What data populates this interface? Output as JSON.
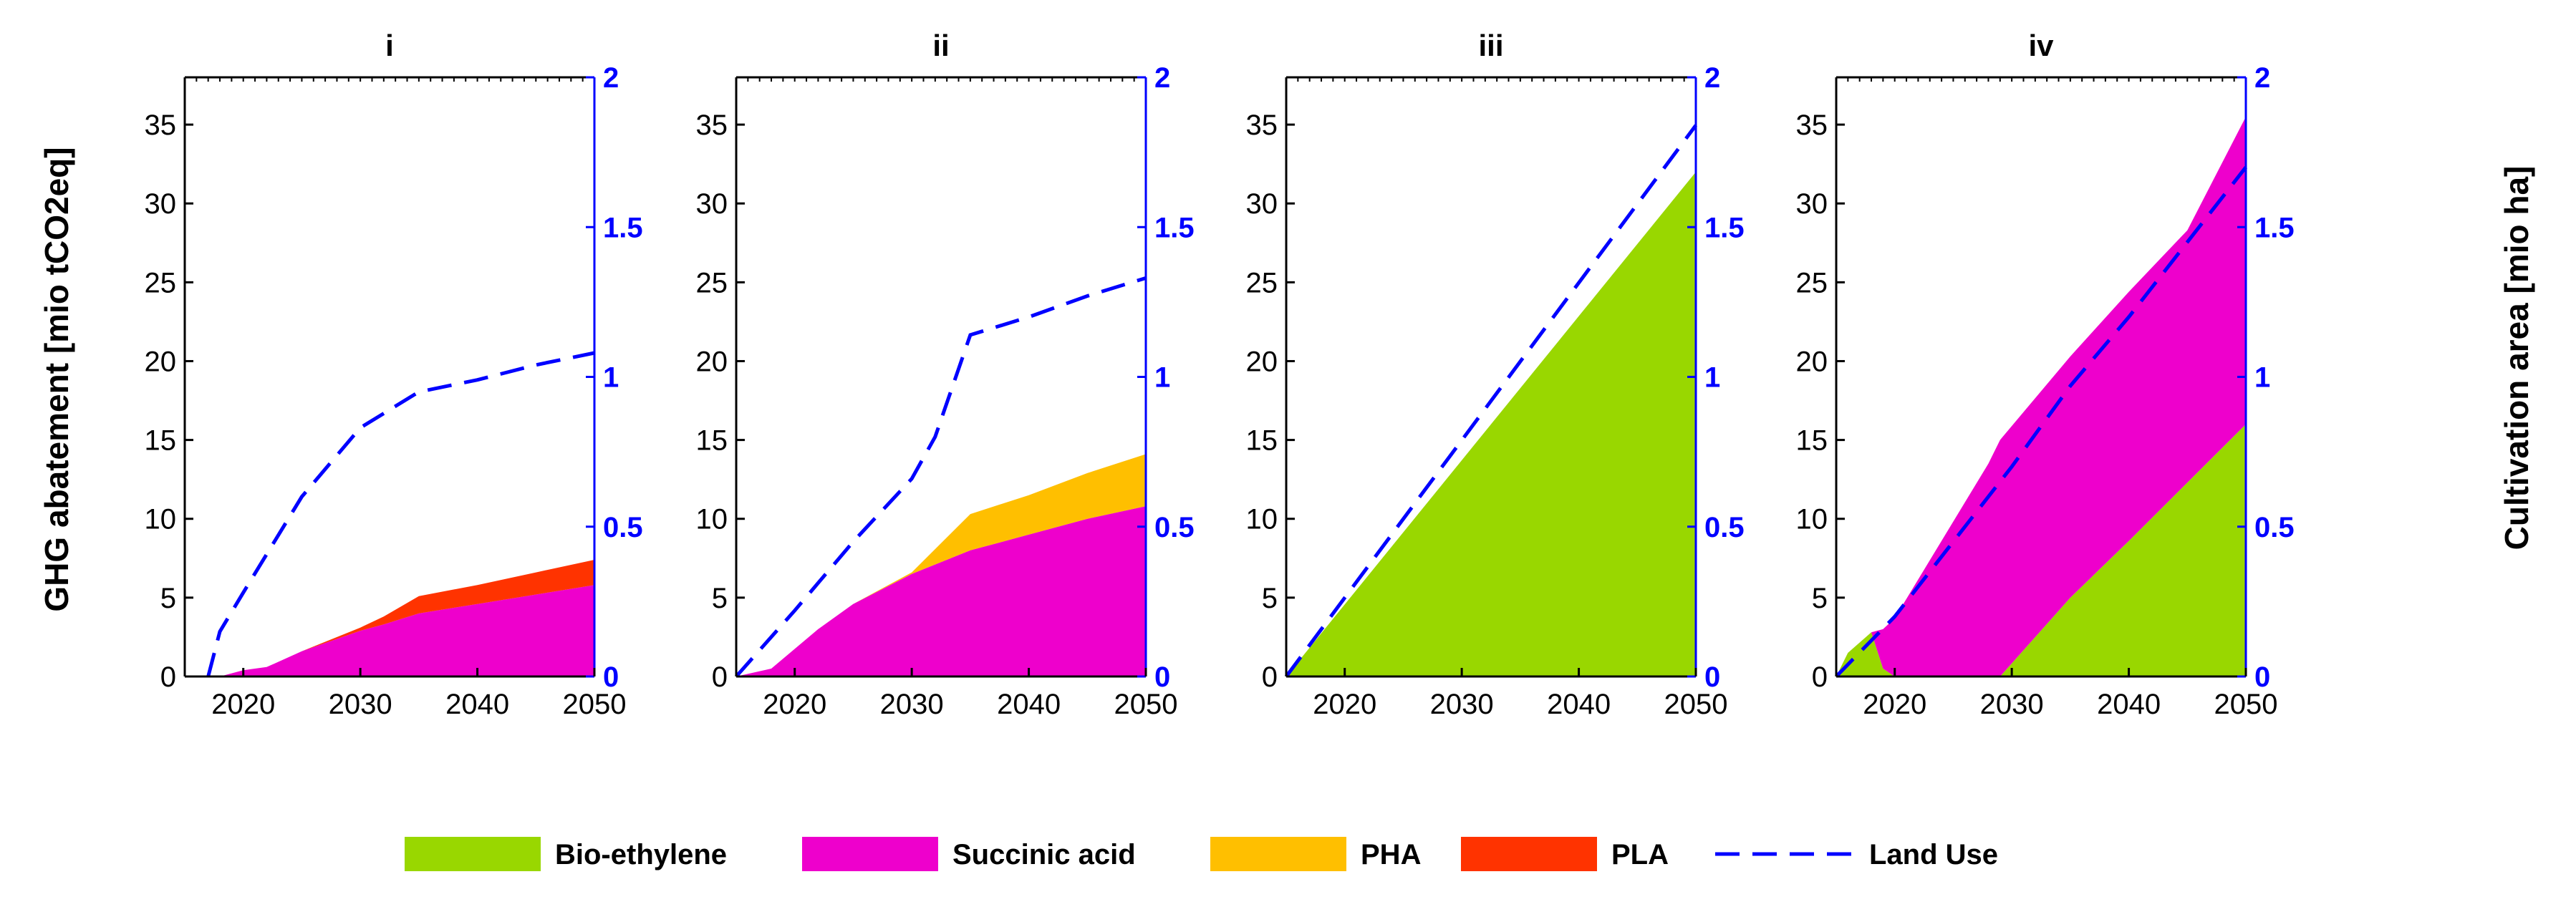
{
  "chart_data": {
    "type": "area",
    "ylabel_left": "GHG abatement [mio tCO2eq]",
    "ylabel_right": "Cultivation area [mio ha]",
    "xlim": [
      2015,
      2050
    ],
    "ylim_left": [
      0,
      38
    ],
    "ylim_right": [
      0,
      2
    ],
    "xticks": [
      "2020",
      "2030",
      "2040",
      "2050"
    ],
    "yticks_left": [
      "0",
      "5",
      "10",
      "15",
      "20",
      "25",
      "30",
      "35"
    ],
    "yticks_right": [
      "0",
      "0.5",
      "1",
      "1.5",
      "2"
    ],
    "colors": {
      "Bio-ethylene": "#99d700",
      "Succinic acid": "#ee00cc",
      "PHA": "#ffbf00",
      "PLA": "#ff3300",
      "Land Use": "#0000ff"
    },
    "legend": [
      "Bio-ethylene",
      "Succinic acid",
      "PHA",
      "PLA",
      "Land Use"
    ],
    "panels": [
      {
        "title": "i",
        "x": [
          2015,
          2017,
          2018,
          2020,
          2022,
          2025,
          2030,
          2032,
          2035,
          2040,
          2045,
          2050
        ],
        "series": [
          {
            "name": "Bio-ethylene",
            "values": [
              0,
              0,
              0,
              0,
              0,
              0,
              0,
              0,
              0,
              0,
              0,
              0
            ]
          },
          {
            "name": "Succinic acid",
            "values": [
              0,
              0,
              0,
              0.4,
              0.6,
              1.6,
              2.9,
              3.3,
              4.0,
              4.6,
              5.2,
              5.8
            ]
          },
          {
            "name": "PHA",
            "values": [
              0,
              0,
              0,
              0,
              0,
              0,
              0,
              0,
              0,
              0,
              0,
              0
            ]
          },
          {
            "name": "PLA",
            "values": [
              0,
              0,
              0,
              0,
              0,
              0,
              0.2,
              0.5,
              1.1,
              1.2,
              1.4,
              1.6
            ]
          }
        ],
        "land_use": {
          "x": [
            2017,
            2018,
            2020,
            2025,
            2030,
            2035,
            2040,
            2045,
            2050
          ],
          "values": [
            0.0,
            0.15,
            0.28,
            0.6,
            0.83,
            0.95,
            0.99,
            1.04,
            1.08
          ]
        }
      },
      {
        "title": "ii",
        "x": [
          2015,
          2018,
          2022,
          2025,
          2030,
          2035,
          2040,
          2045,
          2050
        ],
        "series": [
          {
            "name": "Bio-ethylene",
            "values": [
              0,
              0,
              0,
              0,
              0,
              0,
              0,
              0,
              0
            ]
          },
          {
            "name": "Succinic acid",
            "values": [
              0,
              0.5,
              3.0,
              4.6,
              6.5,
              8.0,
              9.0,
              10.0,
              10.8
            ]
          },
          {
            "name": "PHA",
            "values": [
              0,
              0,
              0,
              0,
              0.1,
              2.3,
              2.5,
              2.9,
              3.3
            ]
          },
          {
            "name": "PLA",
            "values": [
              0,
              0,
              0,
              0,
              0,
              0,
              0,
              0,
              0
            ]
          }
        ],
        "land_use": {
          "x": [
            2015,
            2020,
            2025,
            2030,
            2032,
            2035,
            2040,
            2045,
            2050
          ],
          "values": [
            0.0,
            0.22,
            0.45,
            0.66,
            0.8,
            1.14,
            1.2,
            1.27,
            1.33
          ]
        }
      },
      {
        "title": "iii",
        "x": [
          2015,
          2050
        ],
        "series": [
          {
            "name": "Bio-ethylene",
            "values": [
              0,
              32.0
            ]
          },
          {
            "name": "Succinic acid",
            "values": [
              0,
              0
            ]
          },
          {
            "name": "PHA",
            "values": [
              0,
              0
            ]
          },
          {
            "name": "PLA",
            "values": [
              0,
              0
            ]
          }
        ],
        "land_use": {
          "x": [
            2015,
            2050
          ],
          "values": [
            0.0,
            1.84
          ]
        }
      },
      {
        "title": "iv",
        "x": [
          2015,
          2016,
          2018,
          2019,
          2020,
          2028,
          2029,
          2035,
          2040,
          2045,
          2050
        ],
        "series": [
          {
            "name": "Bio-ethylene",
            "values": [
              0,
              1.5,
              2.8,
              0.5,
              0,
              0,
              0,
              5.0,
              8.6,
              12.3,
              16.0
            ]
          },
          {
            "name": "Succinic acid",
            "values": [
              0,
              0,
              0,
              2.5,
              3.7,
              13.5,
              15.0,
              15.3,
              15.8,
              16.0,
              19.5
            ]
          },
          {
            "name": "PHA",
            "values": [
              0,
              0,
              0,
              0,
              0,
              0,
              0,
              0,
              0,
              0,
              0
            ]
          },
          {
            "name": "PLA",
            "values": [
              0,
              0,
              0,
              0,
              0,
              0,
              0,
              0,
              0,
              0,
              0
            ]
          }
        ],
        "land_use": {
          "x": [
            2015,
            2020,
            2025,
            2030,
            2035,
            2040,
            2045,
            2050
          ],
          "values": [
            0.0,
            0.2,
            0.45,
            0.7,
            0.97,
            1.2,
            1.45,
            1.7
          ]
        }
      }
    ]
  }
}
